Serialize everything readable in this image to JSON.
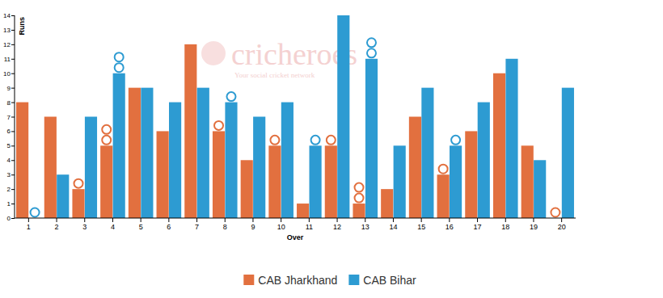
{
  "chart_data": {
    "type": "bar",
    "x_label": "Over",
    "y_label": "Runs",
    "annotations": [
      "cricheroes",
      "Your social cricket network"
    ],
    "categories": [
      "1",
      "2",
      "3",
      "4",
      "5",
      "6",
      "7",
      "8",
      "9",
      "10",
      "11",
      "12",
      "13",
      "14",
      "15",
      "16",
      "17",
      "18",
      "19",
      "20"
    ],
    "series": [
      {
        "name": "CAB Jharkhand",
        "color": "#e2703f",
        "values": [
          8,
          7,
          2,
          5,
          9,
          6,
          12,
          6,
          4,
          5,
          1,
          5,
          1,
          2,
          7,
          3,
          6,
          10,
          5,
          0
        ],
        "wickets": [
          0,
          0,
          1,
          2,
          0,
          0,
          0,
          1,
          0,
          1,
          0,
          1,
          2,
          0,
          0,
          1,
          0,
          0,
          0,
          1
        ]
      },
      {
        "name": "CAB Bihar",
        "color": "#2d9bd2",
        "values": [
          0,
          3,
          7,
          10,
          9,
          8,
          9,
          8,
          7,
          8,
          5,
          14,
          11,
          5,
          9,
          5,
          8,
          11,
          4,
          9
        ],
        "wickets": [
          1,
          0,
          0,
          2,
          0,
          0,
          0,
          1,
          0,
          0,
          1,
          0,
          2,
          0,
          0,
          1,
          0,
          0,
          0,
          0
        ]
      }
    ],
    "ylim": [
      0,
      14
    ],
    "yticks": [
      0,
      1,
      2,
      3,
      4,
      5,
      6,
      7,
      8,
      9,
      10,
      11,
      12,
      13,
      14
    ],
    "grid": false,
    "legend": "bottom"
  }
}
